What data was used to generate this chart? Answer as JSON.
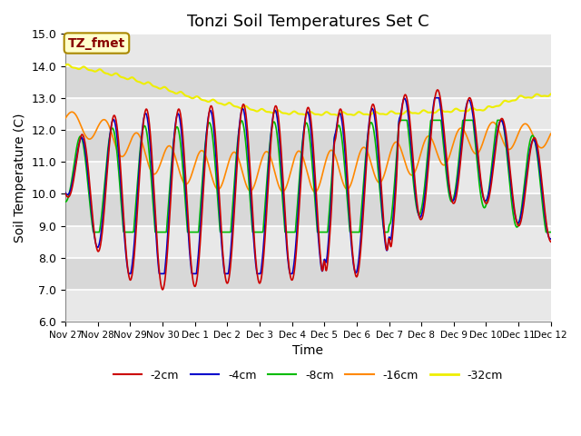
{
  "title": "Tonzi Soil Temperatures Set C",
  "xlabel": "Time",
  "ylabel": "Soil Temperature (C)",
  "ylim": [
    6.0,
    15.0
  ],
  "yticks": [
    6.0,
    7.0,
    8.0,
    9.0,
    10.0,
    11.0,
    12.0,
    13.0,
    14.0,
    15.0
  ],
  "xtick_labels": [
    "Nov 27",
    "Nov 28",
    "Nov 29",
    "Nov 30",
    "Dec 1",
    "Dec 2",
    "Dec 3",
    "Dec 4",
    "Dec 5",
    "Dec 6",
    "Dec 7",
    "Dec 8",
    "Dec 9",
    "Dec 9",
    "Dec 10",
    "Dec 11",
    "Dec 12"
  ],
  "xtick_labels_display": [
    "Nov 27",
    "Nov 28",
    "Nov 29",
    "Nov 30",
    "Dec 1",
    "Dec 2",
    "Dec 3",
    "Dec 4",
    "Dec 5",
    "Dec 6",
    "Dec 7",
    "Dec 8",
    "Dec 9",
    "Dec 10",
    "Dec 11",
    "Dec 12"
  ],
  "series_colors": [
    "#cc0000",
    "#0000cc",
    "#00bb00",
    "#ff8800",
    "#eeee00"
  ],
  "series_labels": [
    "-2cm",
    "-4cm",
    "-8cm",
    "-16cm",
    "-32cm"
  ],
  "annotation_text": "TZ_fmet",
  "annotation_bg": "#ffffcc",
  "annotation_border": "#aa8800",
  "annotation_text_color": "#880000",
  "plot_bg_light": "#e8e8e8",
  "plot_bg_dark": "#d8d8d8",
  "grid_color": "#ffffff",
  "n_points": 1440
}
